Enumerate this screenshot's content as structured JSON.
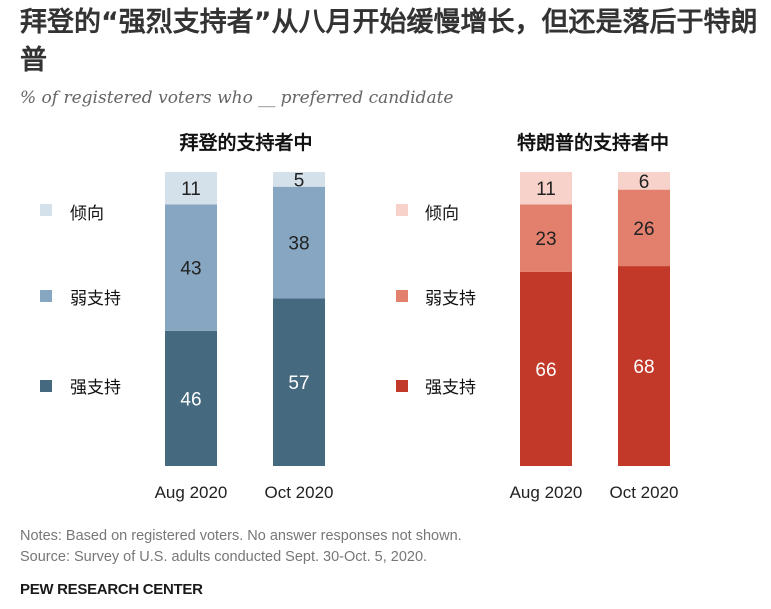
{
  "title": "拜登的“强烈支持者”从八月开始缓慢增长，但还是落后于特朗普",
  "subtitle": "% of registered voters who __ preferred candidate",
  "notes": [
    "Notes: Based on registered voters. No answer responses not shown.",
    "Source: Survey of U.S. adults conducted Sept. 30-Oct. 5, 2020."
  ],
  "brand": "PEW RESEARCH CENTER",
  "chart_data": [
    {
      "type": "bar",
      "stacked": true,
      "title": "拜登的支持者中",
      "categories": [
        "Aug 2020",
        "Oct 2020"
      ],
      "series": [
        {
          "name": "强支持",
          "values": [
            46,
            57
          ],
          "color": "#45697F"
        },
        {
          "name": "弱支持",
          "values": [
            43,
            38
          ],
          "color": "#86A6C1"
        },
        {
          "name": "倾向",
          "values": [
            11,
            5
          ],
          "color": "#D5E1EA"
        }
      ],
      "label_colors": [
        "#ffffff",
        "#222222",
        "#222222"
      ],
      "ylim": [
        0,
        100
      ]
    },
    {
      "type": "bar",
      "stacked": true,
      "title": "特朗普的支持者中",
      "categories": [
        "Aug 2020",
        "Oct 2020"
      ],
      "series": [
        {
          "name": "强支持",
          "values": [
            66,
            68
          ],
          "color": "#C2392A"
        },
        {
          "name": "弱支持",
          "values": [
            23,
            26
          ],
          "color": "#E27F6D"
        },
        {
          "name": "倾向",
          "values": [
            11,
            6
          ],
          "color": "#F6D2CA"
        }
      ],
      "label_colors": [
        "#ffffff",
        "#222222",
        "#222222"
      ],
      "ylim": [
        0,
        100
      ]
    }
  ]
}
